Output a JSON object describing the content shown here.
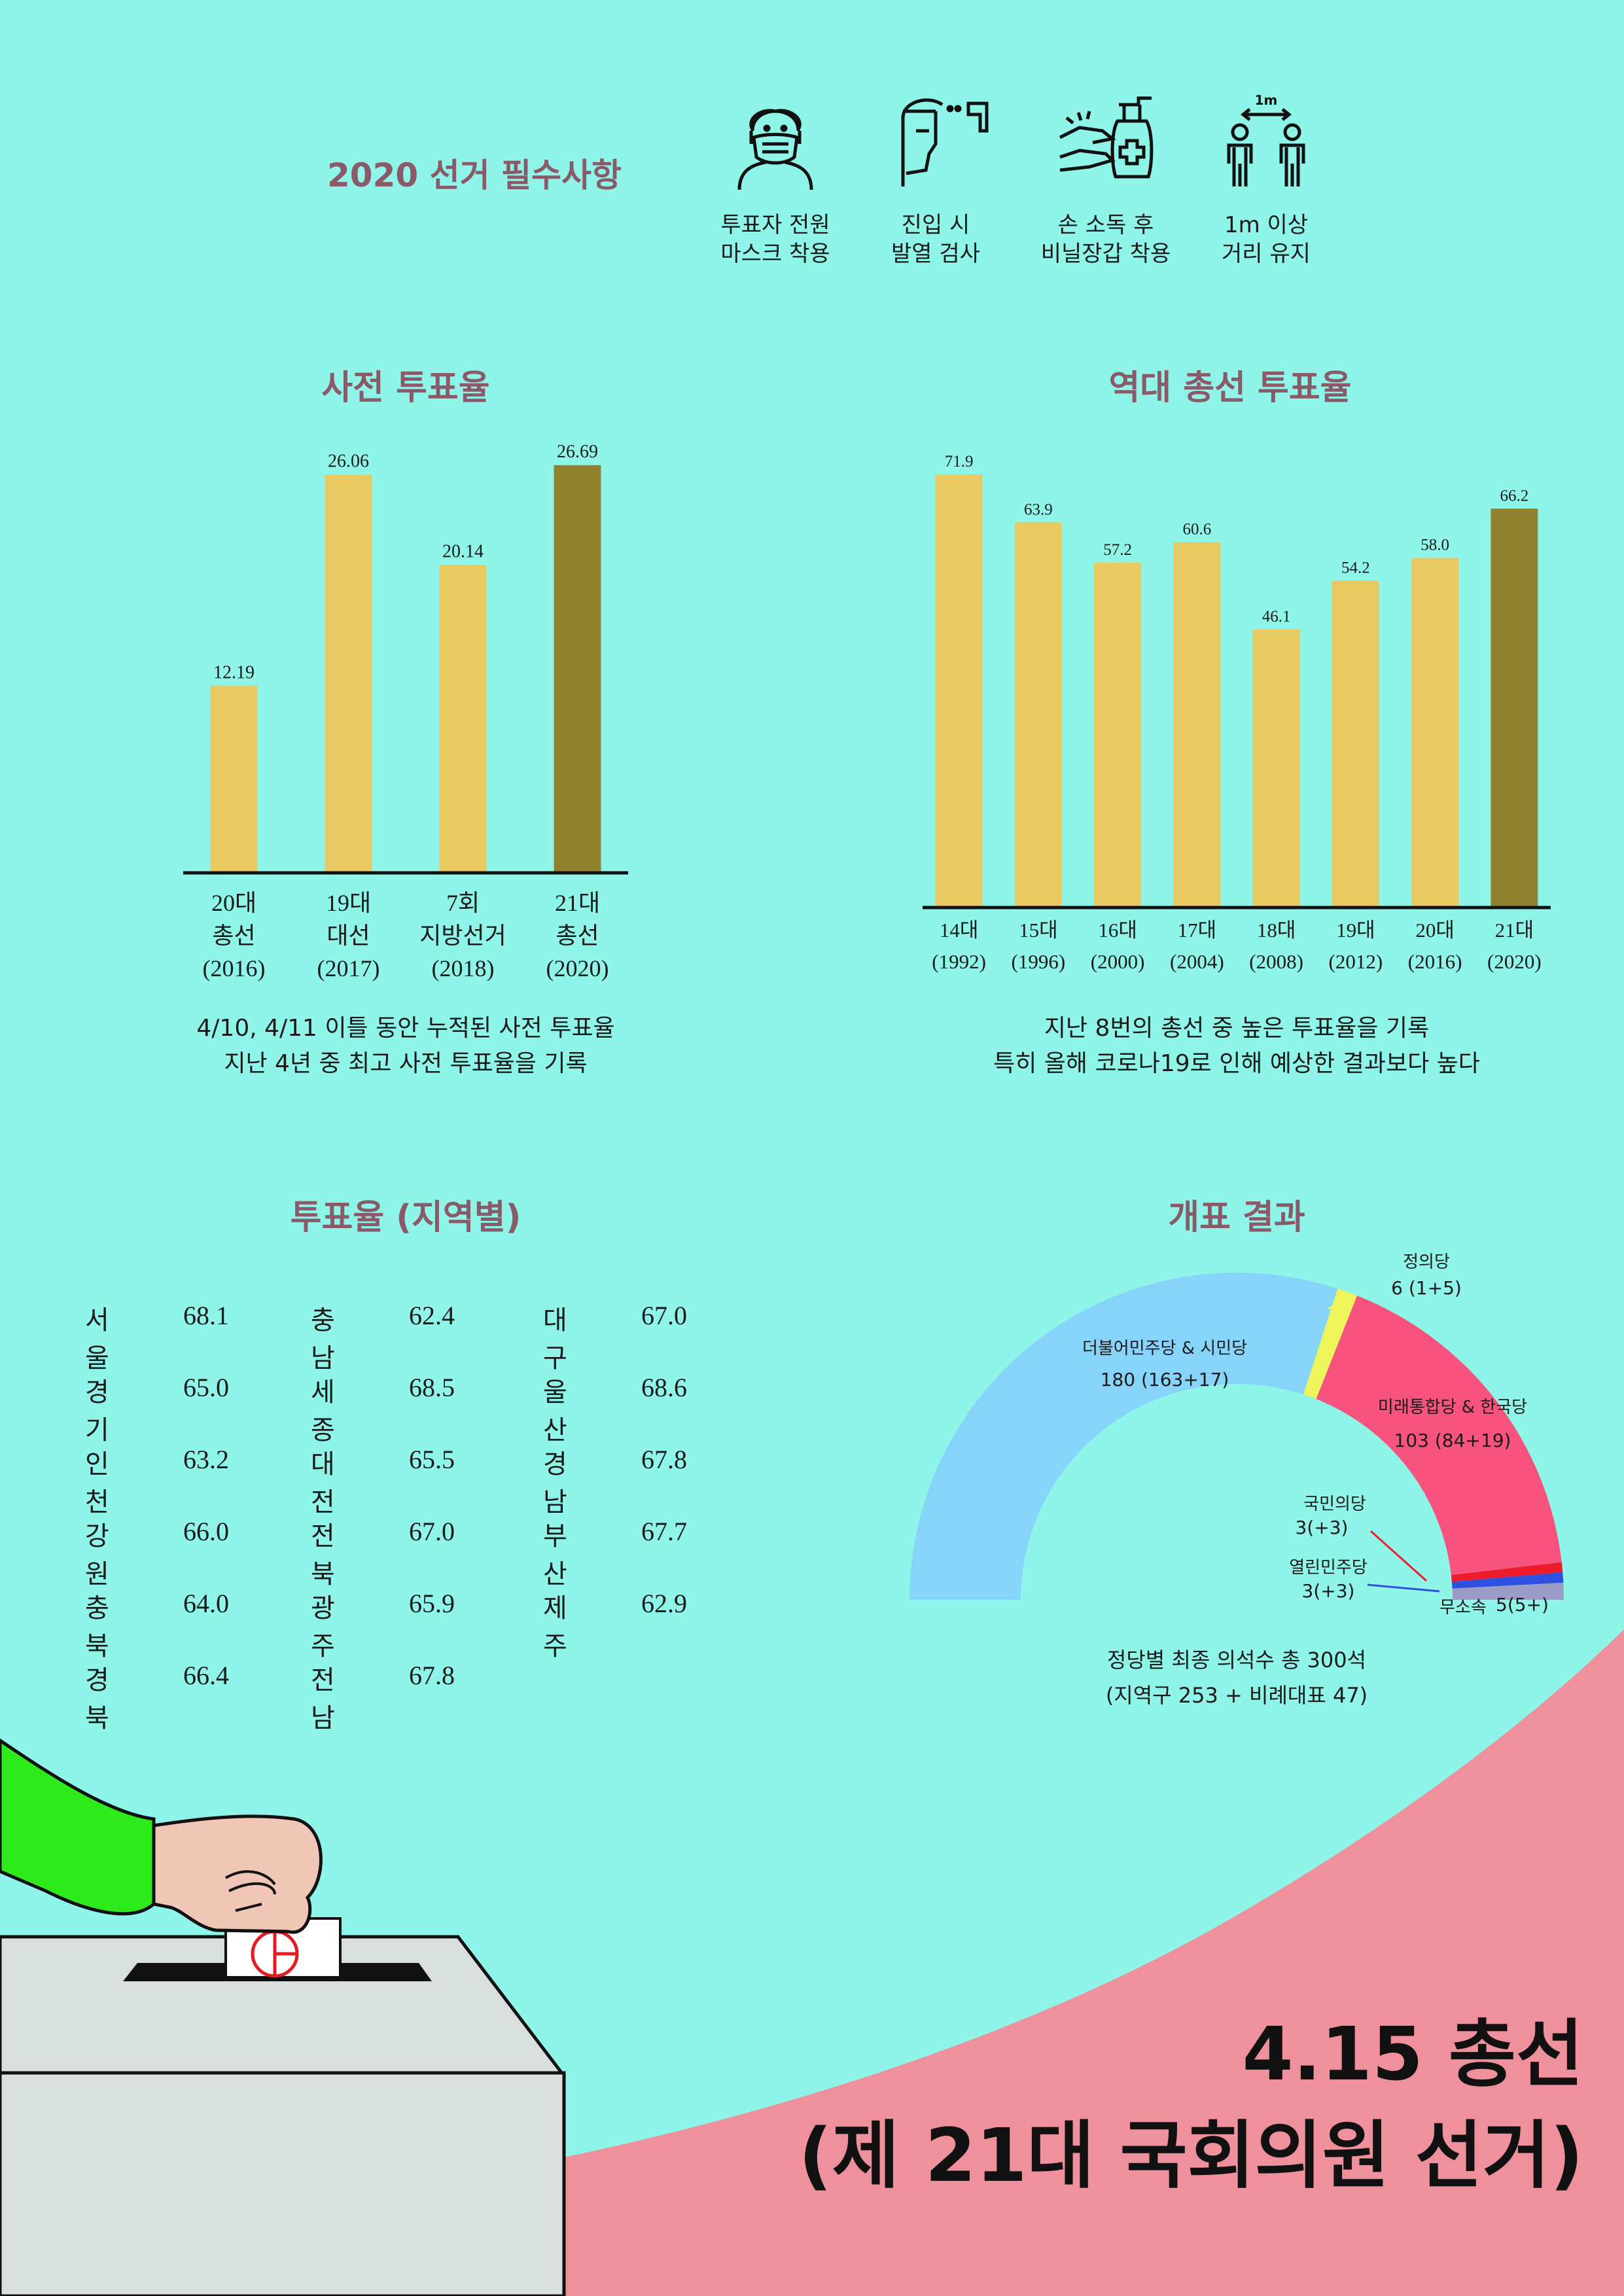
{
  "header": {
    "title": "2020 선거 필수사항",
    "items": [
      {
        "icon": "mask-icon",
        "label": "투표자 전원\n마스크 착용"
      },
      {
        "icon": "thermometer-icon",
        "label": "진입 시\n발열 검사"
      },
      {
        "icon": "sanitizer-icon",
        "label": "손 소독 후\n비닐장갑 착용"
      },
      {
        "icon": "distance-icon",
        "label": "1m 이상\n거리 유지",
        "badge": "1m"
      }
    ]
  },
  "chart_data": [
    {
      "type": "bar",
      "title": "사전 투표율",
      "categories": [
        "20대\n총선\n(2016)",
        "19대\n대선\n(2017)",
        "7회\n지방선거\n(2018)",
        "21대\n총선\n(2020)"
      ],
      "values": [
        12.19,
        26.06,
        20.14,
        26.69
      ],
      "value_labels": [
        "12.19",
        "26.06",
        "20.14",
        "26.69"
      ],
      "colors": [
        "#e8c962",
        "#e8c962",
        "#e8c962",
        "#908230"
      ],
      "caption": [
        "4/10, 4/11 이틀 동안 누적된 사전 투표율",
        "지난 4년 중 최고 사전 투표율을 기록"
      ]
    },
    {
      "type": "bar",
      "title": "역대 총선 투표율",
      "categories": [
        "14대\n(1992)",
        "15대\n(1996)",
        "16대\n(2000)",
        "17대\n(2004)",
        "18대\n(2008)",
        "19대\n(2012)",
        "20대\n(2016)",
        "21대\n(2020)"
      ],
      "values": [
        71.9,
        63.9,
        57.2,
        60.6,
        46.1,
        54.2,
        58.0,
        66.2
      ],
      "value_labels": [
        "71.9",
        "63.9",
        "57.2",
        "60.6",
        "46.1",
        "54.2",
        "58.0",
        "66.2"
      ],
      "colors": [
        "#e8c962",
        "#e8c962",
        "#e8c962",
        "#e8c962",
        "#e8c962",
        "#e8c962",
        "#e8c962",
        "#908230"
      ],
      "caption": [
        "지난 8번의 총선 중 높은 투표율을 기록",
        "특히 올해 코로나19로 인해 예상한 결과보다 높다"
      ]
    },
    {
      "type": "pie",
      "title": "개표 결과",
      "total": 300,
      "slices": [
        {
          "name": "더불어민주당 & 시민당",
          "value": 180,
          "label": "180 (163+17)",
          "color": "#87d4fb"
        },
        {
          "name": "정의당",
          "value": 6,
          "label": "6 (1+5)",
          "color": "#eef55a"
        },
        {
          "name": "미래통합당 & 한국당",
          "value": 103,
          "label": "103 (84+19)",
          "color": "#f8527e"
        },
        {
          "name": "국민의당",
          "value": 3,
          "label": "3(+3)",
          "color": "#ee1c2a"
        },
        {
          "name": "열린민주당",
          "value": 3,
          "label": "3(+3)",
          "color": "#2e4fe0"
        },
        {
          "name": "무소속",
          "value": 5,
          "label": "5(5+)",
          "color": "#9b9bc8"
        }
      ],
      "caption": [
        "정당별 최종 의석수 총 300석",
        "(지역구 253 + 비례대표 47)"
      ]
    }
  ],
  "regional": {
    "title": "투표율 (지역별)",
    "columns": [
      [
        {
          "name": "서울",
          "value": "68.1"
        },
        {
          "name": "경기",
          "value": "65.0"
        },
        {
          "name": "인천",
          "value": "63.2"
        },
        {
          "name": "강원",
          "value": "66.0"
        },
        {
          "name": "충북",
          "value": "64.0"
        },
        {
          "name": "경북",
          "value": "66.4"
        }
      ],
      [
        {
          "name": "충남",
          "value": "62.4"
        },
        {
          "name": "세종",
          "value": "68.5"
        },
        {
          "name": "대전",
          "value": "65.5"
        },
        {
          "name": "전북",
          "value": "67.0"
        },
        {
          "name": "광주",
          "value": "65.9"
        },
        {
          "name": "전남",
          "value": "67.8"
        }
      ],
      [
        {
          "name": "대구",
          "value": "67.0"
        },
        {
          "name": "울산",
          "value": "68.6"
        },
        {
          "name": "경남",
          "value": "67.8"
        },
        {
          "name": "부산",
          "value": "67.7"
        },
        {
          "name": "제주",
          "value": "62.9"
        }
      ]
    ]
  },
  "footer": {
    "title_line1": "4.15 총선",
    "title_line2": "(제 21대 국회의원 선거)"
  },
  "colors": {
    "background": "#8ef5e8",
    "heading": "#8a5a68",
    "pink_wave": "#ee919c",
    "sleeve": "#2eeb1b",
    "ballot_box": "#d8dfdc"
  }
}
